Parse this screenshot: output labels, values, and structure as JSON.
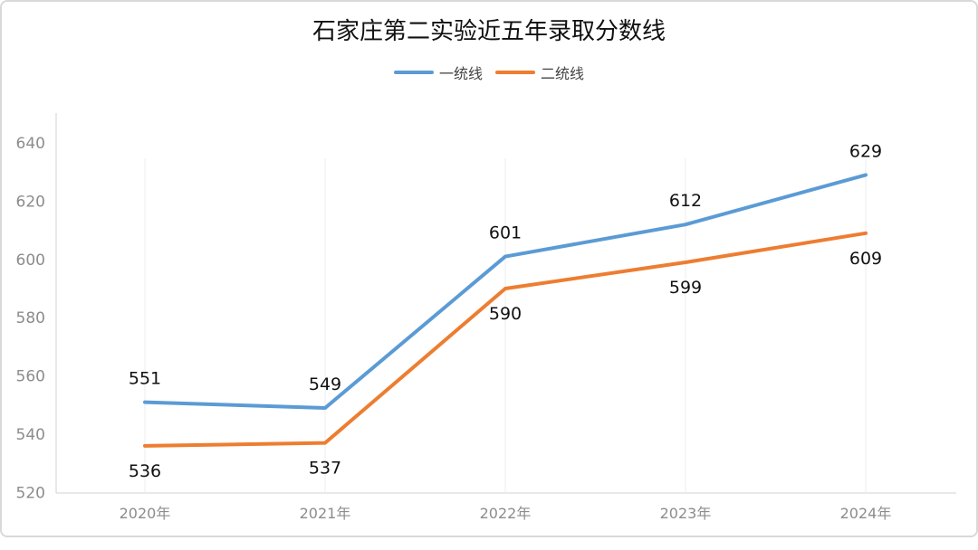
{
  "chart_data": {
    "type": "line",
    "title": "石家庄第二实验近五年录取分数线",
    "categories": [
      "2020年",
      "2021年",
      "2022年",
      "2023年",
      "2024年"
    ],
    "series": [
      {
        "name": "一统线",
        "values": [
          551,
          549,
          601,
          612,
          629
        ],
        "color": "#5b9bd5"
      },
      {
        "name": "二统线",
        "values": [
          536,
          537,
          590,
          599,
          609
        ],
        "color": "#ed7d31"
      }
    ],
    "ylim": [
      520,
      645
    ],
    "yticks": [
      520,
      540,
      560,
      580,
      600,
      620,
      640
    ],
    "xlabel": "",
    "ylabel": "",
    "legend_position": "top-center",
    "grid": "vertical-light"
  }
}
